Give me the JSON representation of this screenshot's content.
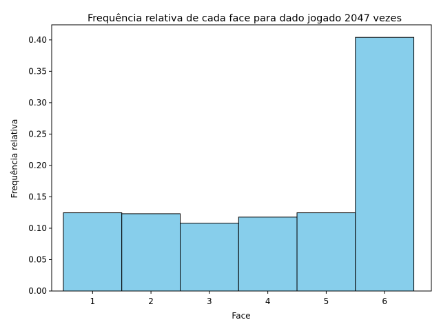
{
  "chart_data": {
    "type": "bar",
    "title": "Frequência relativa de cada face para dado jogado 2047 vezes",
    "xlabel": "Face",
    "ylabel": "Frequência relativa",
    "categories": [
      "1",
      "2",
      "3",
      "4",
      "5",
      "6"
    ],
    "values": [
      0.1246,
      0.1231,
      0.108,
      0.1177,
      0.1246,
      0.404
    ],
    "xlim": [
      0.3,
      6.8
    ],
    "ylim": [
      0,
      0.424
    ],
    "yticks": [
      "0.00",
      "0.05",
      "0.10",
      "0.15",
      "0.20",
      "0.25",
      "0.30",
      "0.35",
      "0.40"
    ],
    "bar_color": "#87ceeb",
    "edge_color": "#000000",
    "grid": false,
    "legend": "none"
  }
}
